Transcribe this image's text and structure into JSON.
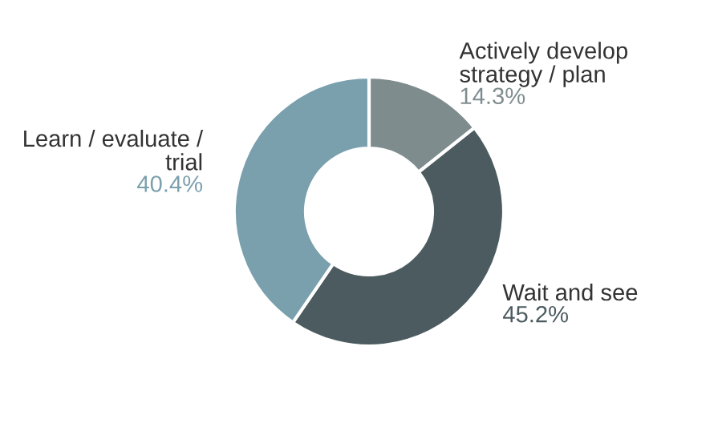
{
  "chart_data": {
    "type": "donut",
    "categories": [
      "Actively develop strategy / plan",
      "Wait and see",
      "Learn / evaluate / trial"
    ],
    "values": [
      14.3,
      45.2,
      40.4
    ],
    "colors": [
      "#7f8c8e",
      "#4b5b5f",
      "#7aa0ad"
    ],
    "value_labels": [
      "14.3%",
      "45.2%",
      "40.4%"
    ]
  }
}
